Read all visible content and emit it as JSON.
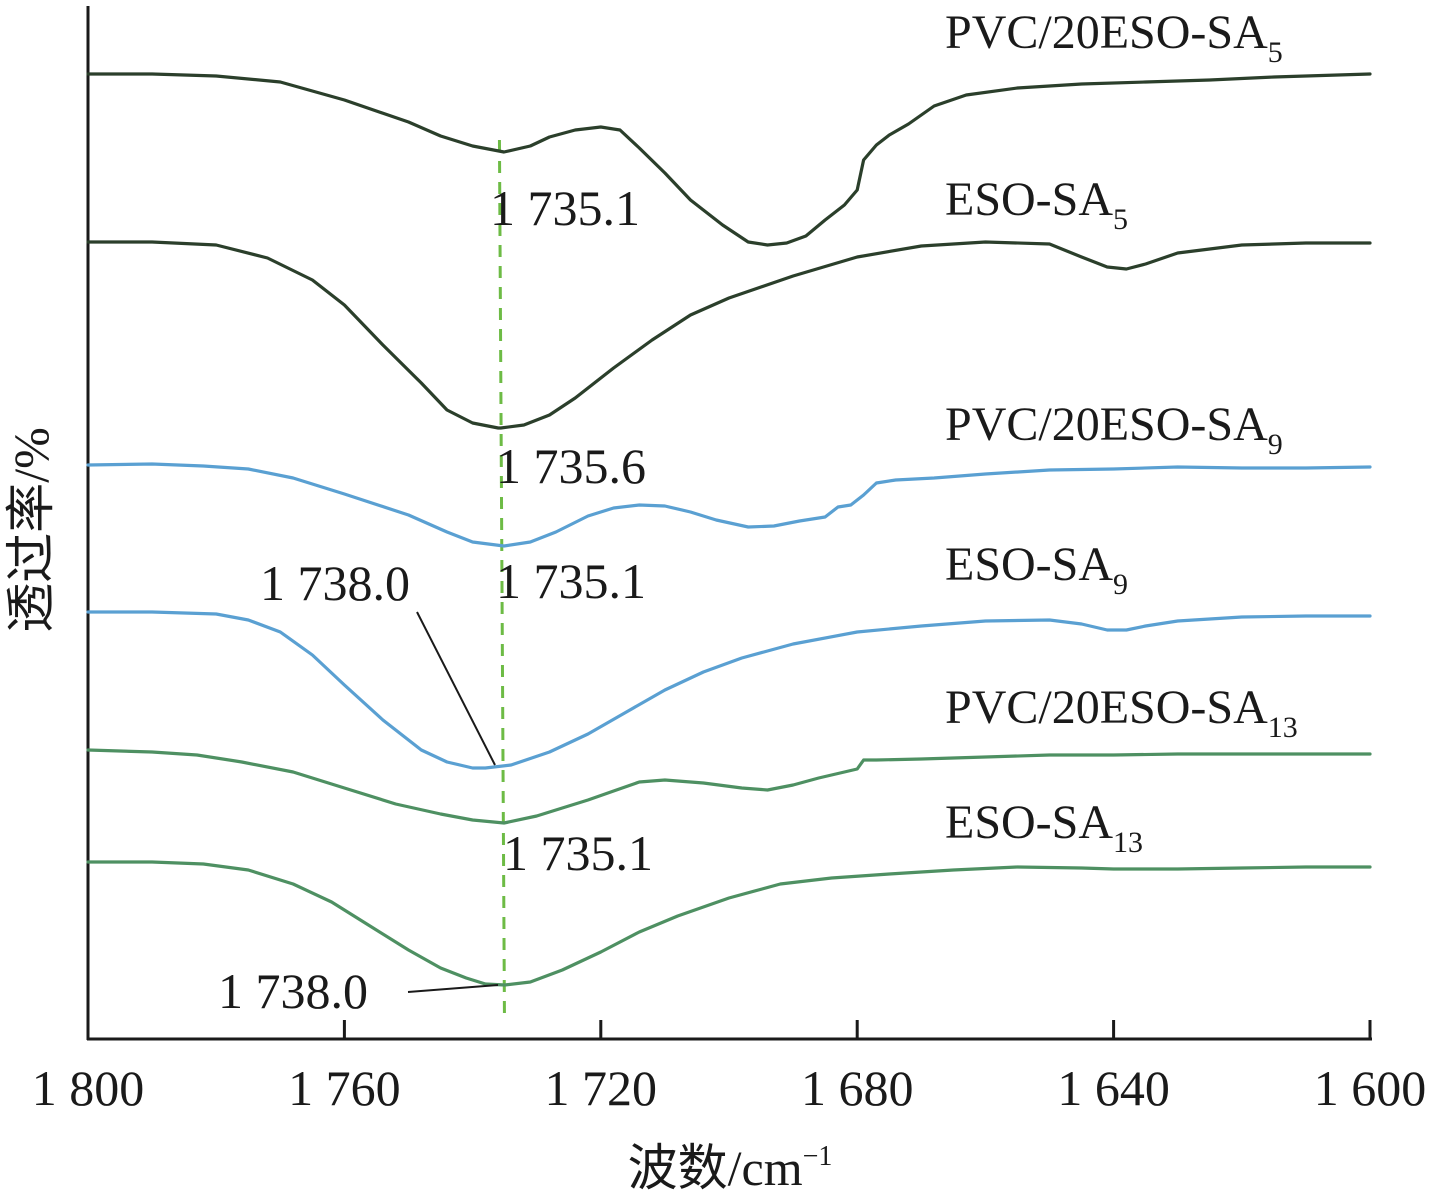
{
  "chart_data": {
    "type": "line",
    "xlabel": "波数/cm",
    "xlabel_sup": "−1",
    "ylabel": "透过率/%",
    "xlim": [
      1800,
      1600
    ],
    "x_reversed": true,
    "grid": false,
    "y_ticks_shown": false,
    "x_ticks": [
      1800,
      1760,
      1720,
      1680,
      1640,
      1600
    ],
    "x_tick_labels": [
      "1 800",
      "1 760",
      "1 720",
      "1 680",
      "1 640",
      "1 600"
    ],
    "reference_line": {
      "x": 1735.5,
      "style": "dashed",
      "color": "#6dbb45"
    },
    "series": [
      {
        "name": "PVC/20ESO-SA",
        "subscript": "5",
        "color": "#2b3f2b",
        "points": [
          [
            1800,
            74
          ],
          [
            1790,
            74
          ],
          [
            1780,
            76
          ],
          [
            1770,
            82
          ],
          [
            1760,
            100
          ],
          [
            1750,
            122
          ],
          [
            1745,
            136
          ],
          [
            1740,
            146
          ],
          [
            1735.1,
            152
          ],
          [
            1731,
            146
          ],
          [
            1728,
            137
          ],
          [
            1724,
            130
          ],
          [
            1720,
            127
          ],
          [
            1717,
            130
          ],
          [
            1714,
            148
          ],
          [
            1710,
            173
          ],
          [
            1706,
            200
          ],
          [
            1701,
            225
          ],
          [
            1697,
            242
          ],
          [
            1694,
            245
          ],
          [
            1691,
            243
          ],
          [
            1688,
            236
          ],
          [
            1685,
            220
          ],
          [
            1682,
            205
          ],
          [
            1680,
            190
          ],
          [
            1679,
            160
          ],
          [
            1677,
            145
          ],
          [
            1675,
            135
          ],
          [
            1672,
            124
          ],
          [
            1668,
            106
          ],
          [
            1663,
            95
          ],
          [
            1655,
            88
          ],
          [
            1645,
            84
          ],
          [
            1635,
            82
          ],
          [
            1625,
            80
          ],
          [
            1615,
            77
          ],
          [
            1600,
            74
          ]
        ]
      },
      {
        "name": "ESO-SA",
        "subscript": "5",
        "color": "#2b3f2b",
        "points": [
          [
            1800,
            242
          ],
          [
            1790,
            242
          ],
          [
            1780,
            245
          ],
          [
            1772,
            258
          ],
          [
            1765,
            280
          ],
          [
            1760,
            305
          ],
          [
            1754,
            345
          ],
          [
            1748,
            383
          ],
          [
            1744,
            410
          ],
          [
            1740,
            423
          ],
          [
            1736,
            428
          ],
          [
            1735.6,
            428
          ],
          [
            1732,
            425
          ],
          [
            1728,
            415
          ],
          [
            1724,
            398
          ],
          [
            1718,
            368
          ],
          [
            1712,
            340
          ],
          [
            1706,
            315
          ],
          [
            1700,
            298
          ],
          [
            1690,
            276
          ],
          [
            1680,
            257
          ],
          [
            1670,
            246
          ],
          [
            1660,
            242
          ],
          [
            1650,
            244
          ],
          [
            1645,
            257
          ],
          [
            1641,
            267
          ],
          [
            1638,
            269
          ],
          [
            1635,
            264
          ],
          [
            1630,
            253
          ],
          [
            1620,
            245
          ],
          [
            1610,
            243
          ],
          [
            1600,
            243
          ]
        ]
      },
      {
        "name": "PVC/20ESO-SA",
        "subscript": "9",
        "color": "#5aa0d2",
        "points": [
          [
            1800,
            465
          ],
          [
            1790,
            464
          ],
          [
            1782,
            466
          ],
          [
            1775,
            469
          ],
          [
            1768,
            478
          ],
          [
            1760,
            494
          ],
          [
            1750,
            515
          ],
          [
            1744,
            532
          ],
          [
            1740,
            542
          ],
          [
            1735.1,
            546
          ],
          [
            1731,
            542
          ],
          [
            1727,
            532
          ],
          [
            1722,
            516
          ],
          [
            1718,
            508
          ],
          [
            1714,
            505
          ],
          [
            1710,
            506
          ],
          [
            1706,
            512
          ],
          [
            1702,
            520
          ],
          [
            1697,
            527
          ],
          [
            1693,
            526
          ],
          [
            1689,
            521
          ],
          [
            1685,
            517
          ],
          [
            1683,
            507
          ],
          [
            1681,
            505
          ],
          [
            1679,
            495
          ],
          [
            1677,
            483
          ],
          [
            1674,
            480
          ],
          [
            1668,
            478
          ],
          [
            1660,
            474
          ],
          [
            1650,
            470
          ],
          [
            1640,
            469
          ],
          [
            1630,
            467
          ],
          [
            1620,
            468
          ],
          [
            1610,
            468
          ],
          [
            1600,
            467
          ]
        ]
      },
      {
        "name": "ESO-SA",
        "subscript": "9",
        "color": "#5aa0d2",
        "points": [
          [
            1800,
            612
          ],
          [
            1790,
            612
          ],
          [
            1780,
            614
          ],
          [
            1775,
            620
          ],
          [
            1770,
            632
          ],
          [
            1765,
            655
          ],
          [
            1760,
            685
          ],
          [
            1754,
            720
          ],
          [
            1748,
            750
          ],
          [
            1744,
            762
          ],
          [
            1740,
            768
          ],
          [
            1738,
            768
          ],
          [
            1734,
            765
          ],
          [
            1728,
            752
          ],
          [
            1722,
            734
          ],
          [
            1716,
            712
          ],
          [
            1710,
            690
          ],
          [
            1704,
            672
          ],
          [
            1698,
            658
          ],
          [
            1690,
            644
          ],
          [
            1680,
            632
          ],
          [
            1670,
            626
          ],
          [
            1660,
            621
          ],
          [
            1650,
            620
          ],
          [
            1645,
            624
          ],
          [
            1641,
            630
          ],
          [
            1638,
            630
          ],
          [
            1635,
            626
          ],
          [
            1630,
            621
          ],
          [
            1620,
            617
          ],
          [
            1610,
            616
          ],
          [
            1600,
            616
          ]
        ]
      },
      {
        "name": "PVC/20ESO-SA",
        "subscript": "13",
        "color": "#4e9062",
        "points": [
          [
            1800,
            750
          ],
          [
            1790,
            752
          ],
          [
            1783,
            755
          ],
          [
            1776,
            762
          ],
          [
            1768,
            772
          ],
          [
            1760,
            788
          ],
          [
            1752,
            804
          ],
          [
            1745,
            814
          ],
          [
            1740,
            820
          ],
          [
            1735.1,
            823
          ],
          [
            1730,
            816
          ],
          [
            1726,
            808
          ],
          [
            1722,
            800
          ],
          [
            1718,
            791
          ],
          [
            1714,
            782
          ],
          [
            1710,
            780
          ],
          [
            1704,
            783
          ],
          [
            1698,
            788
          ],
          [
            1694,
            790
          ],
          [
            1690,
            785
          ],
          [
            1686,
            778
          ],
          [
            1682,
            772
          ],
          [
            1680,
            769
          ],
          [
            1679,
            760
          ],
          [
            1677,
            760
          ],
          [
            1670,
            759
          ],
          [
            1660,
            757
          ],
          [
            1650,
            755
          ],
          [
            1640,
            755
          ],
          [
            1630,
            754
          ],
          [
            1620,
            754
          ],
          [
            1610,
            754
          ],
          [
            1600,
            754
          ]
        ]
      },
      {
        "name": "ESO-SA",
        "subscript": "13",
        "color": "#4e9062",
        "points": [
          [
            1800,
            862
          ],
          [
            1790,
            862
          ],
          [
            1782,
            864
          ],
          [
            1775,
            870
          ],
          [
            1768,
            884
          ],
          [
            1762,
            902
          ],
          [
            1756,
            926
          ],
          [
            1750,
            950
          ],
          [
            1745,
            968
          ],
          [
            1741,
            978
          ],
          [
            1738,
            984
          ],
          [
            1735,
            985
          ],
          [
            1731,
            982
          ],
          [
            1726,
            970
          ],
          [
            1720,
            952
          ],
          [
            1714,
            932
          ],
          [
            1708,
            916
          ],
          [
            1700,
            898
          ],
          [
            1692,
            884
          ],
          [
            1684,
            878
          ],
          [
            1675,
            874
          ],
          [
            1665,
            870
          ],
          [
            1655,
            867
          ],
          [
            1645,
            868
          ],
          [
            1640,
            869
          ],
          [
            1630,
            869
          ],
          [
            1620,
            868
          ],
          [
            1610,
            867
          ],
          [
            1600,
            867
          ]
        ]
      }
    ],
    "annotations": [
      {
        "text": "1 735.1",
        "series_index": 0,
        "x": 1735.1
      },
      {
        "text": "1 735.6",
        "series_index": 1,
        "x": 1735.6
      },
      {
        "text": "1 735.1",
        "series_index": 2,
        "x": 1735.1
      },
      {
        "text": "1 738.0",
        "series_index": 3,
        "x": 1738.0,
        "leader_line": true
      },
      {
        "text": "1 735.1",
        "series_index": 4,
        "x": 1735.1
      },
      {
        "text": "1 738.0",
        "series_index": 5,
        "x": 1738.0,
        "leader_line": true
      }
    ]
  }
}
